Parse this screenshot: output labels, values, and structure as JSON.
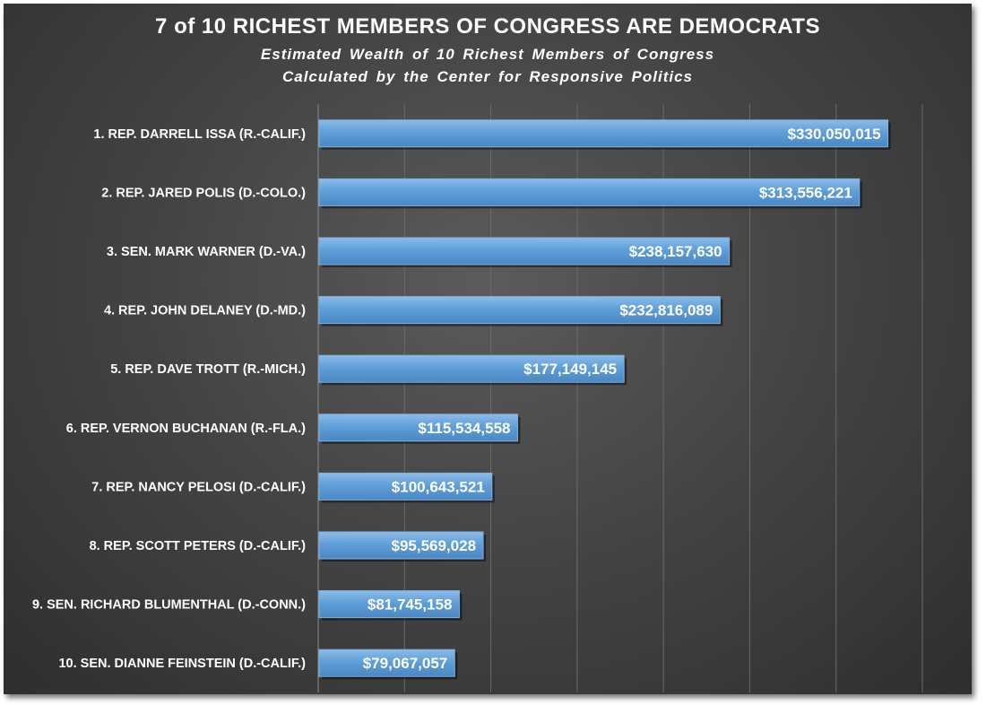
{
  "chart_data": {
    "type": "bar",
    "orientation": "horizontal",
    "title": "7 of 10 RICHEST MEMBERS OF CONGRESS ARE DEMOCRATS",
    "subtitle": [
      "Estimated Wealth of 10 Richest Members of Congress",
      "Calculated by the Center for Responsive Politics"
    ],
    "categories": [
      "1. REP. DARRELL ISSA (R.-CALIF.)",
      "2. REP. JARED POLIS (D.-COLO.)",
      "3. SEN. MARK WARNER (D.-VA.)",
      "4. REP. JOHN DELANEY (D.-MD.)",
      "5. REP. DAVE TROTT (R.-MICH.)",
      "6. REP. VERNON BUCHANAN (R.-FLA.)",
      "7. REP. NANCY PELOSI (D.-CALIF.)",
      "8. REP. SCOTT PETERS (D.-CALIF.)",
      "9. SEN. RICHARD BLUMENTHAL (D.-CONN.)",
      "10. SEN. DIANNE FEINSTEIN (D.-CALIF.)"
    ],
    "values": [
      330050015,
      313556221,
      238157630,
      232816089,
      177149145,
      115534558,
      100643521,
      95569028,
      81745158,
      79067057
    ],
    "data_labels": [
      "$330,050,015",
      "$313,556,221",
      "$238,157,630",
      "$232,816,089",
      "$177,149,145",
      "$115,534,558",
      "$100,643,521",
      "$95,569,028",
      "$81,745,158",
      "$79,067,057"
    ],
    "xlim": [
      0,
      350000000
    ],
    "grid": true,
    "axis_labels_shown": false,
    "colors": {
      "bar": "#5b9bd5",
      "bar_highlight": "#8ab8e6",
      "background": "#454545",
      "gridline": "#6a6a6a",
      "text": "#ffffff"
    }
  }
}
